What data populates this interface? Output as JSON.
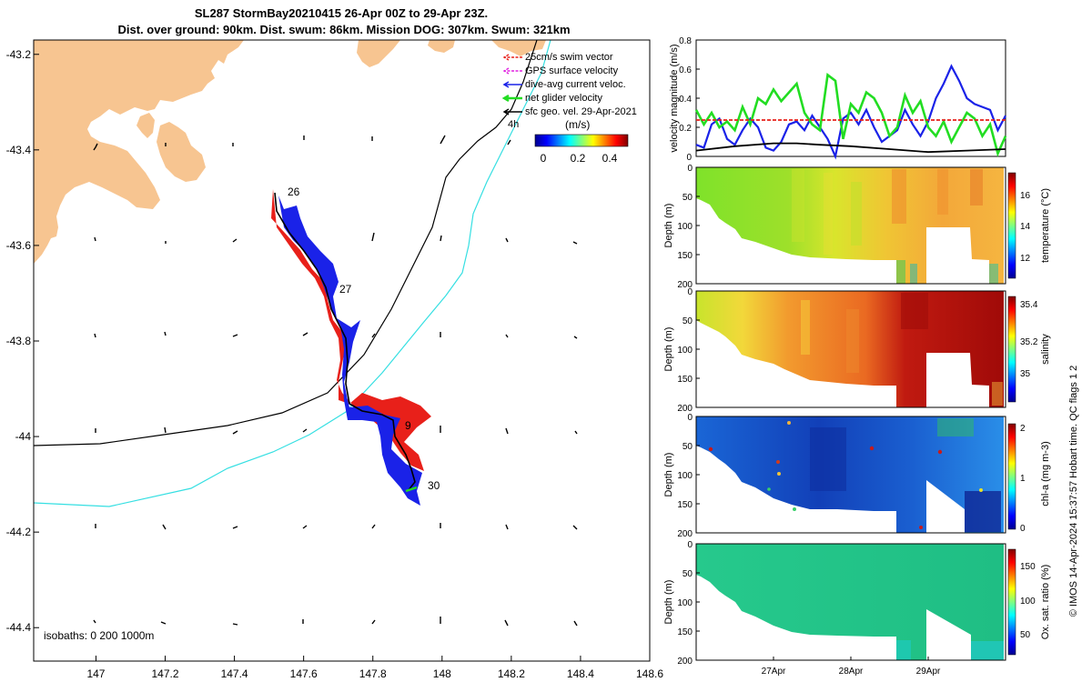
{
  "title_line1": "SL287 StormBay20210415 26-Apr 00Z to 29-Apr 23Z.",
  "title_line2": "Dist. over ground: 90km. Dist. swum: 86km. Mission DOG: 307km. Swum: 321km",
  "side_note": "© IMOS 14-Apr-2024 15:37:57 Hobart time. QC flags 1  2",
  "colors": {
    "land": "#f7c591",
    "swim_vector": "#e8201a",
    "gps_velocity": "#e020e0",
    "dive_avg": "#1a22e8",
    "net_glider": "#22dd22",
    "sfc_geo": "#000000",
    "track_cyan": "#35dfe2",
    "isobath": "#000000"
  },
  "map": {
    "xlim": [
      146.82,
      148.6
    ],
    "ylim": [
      -44.47,
      -43.17
    ],
    "xticks": [
      "147",
      "147.2",
      "147.4",
      "147.6",
      "147.8",
      "148",
      "148.2",
      "148.4",
      "148.6"
    ],
    "yticks": [
      "-43.2",
      "-43.4",
      "-43.6",
      "-43.8",
      "-44",
      "-44.2",
      "-44.4"
    ],
    "isobath_note": "isobaths: 0   200  1000m",
    "day_labels": [
      "26",
      "27",
      "9",
      "30"
    ],
    "legend": {
      "items": [
        {
          "label": "25cm/s swim vector",
          "icon": "red-arrow"
        },
        {
          "label": "GPS surface velocity",
          "icon": "magenta-arrow"
        },
        {
          "label": "dive-avg current veloc.",
          "icon": "blue-arrow"
        },
        {
          "label": "net glider velocity",
          "icon": "green-arrow"
        },
        {
          "label": "sfc geo. vel. 29-Apr-2021",
          "icon": "black-arrow"
        }
      ],
      "interval_label": "4h",
      "colorbar_title": "(m/s)",
      "colorbar_ticks": [
        "0",
        "0.2",
        "0.4"
      ]
    }
  },
  "chart_data": [
    {
      "type": "line",
      "panel": "velocity",
      "ylabel": "velocity magnitude (m/s)",
      "ylim": [
        0,
        0.8
      ],
      "yticks": [
        "0",
        "0.2",
        "0.4",
        "0.6",
        "0.8"
      ],
      "x_unit": "day of April 2021",
      "xlim": [
        26.0,
        30.0
      ],
      "series": [
        {
          "name": "dive-avg current veloc.",
          "color": "#1a22e8",
          "x": [
            26.0,
            26.1,
            26.2,
            26.3,
            26.4,
            26.5,
            26.6,
            26.7,
            26.8,
            26.9,
            27.0,
            27.1,
            27.2,
            27.3,
            27.4,
            27.5,
            27.6,
            27.7,
            27.8,
            27.9,
            28.0,
            28.1,
            28.2,
            28.3,
            28.4,
            28.5,
            28.6,
            28.7,
            28.8,
            28.9,
            29.0,
            29.1,
            29.2,
            29.3,
            29.4,
            29.5,
            29.6,
            29.7,
            29.8,
            29.9,
            30.0
          ],
          "y": [
            0.08,
            0.06,
            0.22,
            0.26,
            0.12,
            0.08,
            0.18,
            0.26,
            0.2,
            0.06,
            0.04,
            0.1,
            0.22,
            0.24,
            0.18,
            0.28,
            0.2,
            0.12,
            0.0,
            0.26,
            0.3,
            0.22,
            0.32,
            0.2,
            0.1,
            0.14,
            0.18,
            0.32,
            0.22,
            0.14,
            0.24,
            0.4,
            0.5,
            0.62,
            0.52,
            0.4,
            0.36,
            0.34,
            0.32,
            0.18,
            0.28
          ]
        },
        {
          "name": "net glider velocity",
          "color": "#22dd22",
          "x": [
            26.0,
            26.1,
            26.2,
            26.3,
            26.4,
            26.5,
            26.6,
            26.7,
            26.8,
            26.9,
            27.0,
            27.1,
            27.2,
            27.3,
            27.4,
            27.5,
            27.6,
            27.7,
            27.8,
            27.9,
            28.0,
            28.1,
            28.2,
            28.3,
            28.4,
            28.5,
            28.6,
            28.7,
            28.8,
            28.9,
            29.0,
            29.1,
            29.2,
            29.3,
            29.4,
            29.5,
            29.6,
            29.7,
            29.8,
            29.9,
            30.0
          ],
          "y": [
            0.32,
            0.22,
            0.3,
            0.2,
            0.24,
            0.18,
            0.34,
            0.22,
            0.4,
            0.36,
            0.46,
            0.38,
            0.44,
            0.5,
            0.3,
            0.22,
            0.18,
            0.56,
            0.52,
            0.12,
            0.36,
            0.3,
            0.44,
            0.4,
            0.3,
            0.14,
            0.2,
            0.42,
            0.3,
            0.38,
            0.2,
            0.14,
            0.24,
            0.1,
            0.2,
            0.3,
            0.26,
            0.14,
            0.22,
            0.02,
            0.14
          ]
        },
        {
          "name": "sfc geo. vel.",
          "color": "#000000",
          "x": [
            26.0,
            26.5,
            27.0,
            27.3,
            27.6,
            28.0,
            28.5,
            29.0,
            29.5,
            30.0
          ],
          "y": [
            0.04,
            0.07,
            0.09,
            0.09,
            0.08,
            0.07,
            0.05,
            0.03,
            0.04,
            0.05
          ]
        },
        {
          "name": "25cm/s swim vector",
          "color": "#e8201a",
          "x": [
            26.0,
            30.0
          ],
          "y": [
            0.25,
            0.25
          ]
        }
      ]
    },
    {
      "type": "heatmap",
      "panel": "temperature",
      "ylabel": "Depth (m)",
      "cbar_label": "temperature (°C)",
      "ylim": [
        0,
        200
      ],
      "yticks": [
        "0",
        "50",
        "100",
        "150",
        "200"
      ],
      "cbar_range": [
        10.5,
        17.5
      ],
      "cbar_ticks": [
        "12",
        "14",
        "16"
      ]
    },
    {
      "type": "heatmap",
      "panel": "salinity",
      "ylabel": "Depth (m)",
      "cbar_label": "salinity",
      "ylim": [
        0,
        200
      ],
      "yticks": [
        "0",
        "50",
        "100",
        "150",
        "200"
      ],
      "cbar_range": [
        34.8,
        35.45
      ],
      "cbar_ticks": [
        "35",
        "35.2",
        "35.4"
      ]
    },
    {
      "type": "heatmap",
      "panel": "chlorophyll",
      "ylabel": "Depth (m)",
      "cbar_label": "chl-a (mg m-3)",
      "ylim": [
        0,
        200
      ],
      "yticks": [
        "0",
        "50",
        "100",
        "150",
        "200"
      ],
      "cbar_range": [
        0,
        2
      ],
      "cbar_ticks": [
        "0",
        "1",
        "2"
      ]
    },
    {
      "type": "heatmap",
      "panel": "oxygen",
      "ylabel": "Depth (m)",
      "cbar_label": "Ox. sat. ratio (%)",
      "ylim": [
        0,
        200
      ],
      "yticks": [
        "0",
        "50",
        "100",
        "150",
        "200"
      ],
      "cbar_range": [
        20,
        180
      ],
      "cbar_ticks": [
        "50",
        "100",
        "150"
      ],
      "xticks": [
        "27Apr",
        "28Apr",
        "29Apr"
      ]
    }
  ]
}
